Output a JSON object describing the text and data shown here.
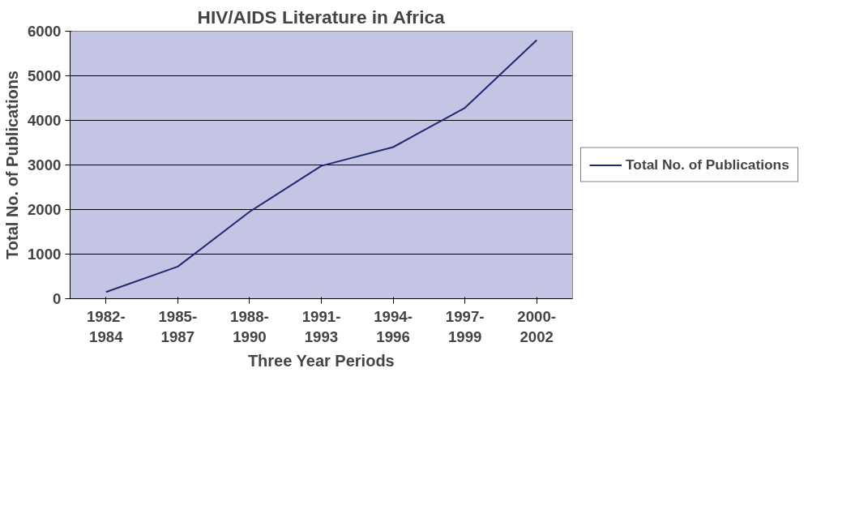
{
  "chart_data": {
    "type": "line",
    "title": "HIV/AIDS Literature in Africa",
    "xlabel": "Three Year Periods",
    "ylabel": "Total No. of Publications",
    "categories": [
      "1982-\n1984",
      "1985-\n1987",
      "1988-\n1990",
      "1991-\n1993",
      "1994-\n1996",
      "1997-\n1999",
      "2000-\n2002"
    ],
    "series": [
      {
        "name": "Total No. of Publications",
        "color": "#1f2a6e",
        "values": [
          150,
          720,
          1950,
          2980,
          3400,
          4280,
          5800
        ]
      }
    ],
    "ylim": [
      0,
      6000
    ],
    "yticks": [
      0,
      1000,
      2000,
      3000,
      4000,
      5000,
      6000
    ],
    "grid": "y",
    "legend": "right",
    "marker": "none",
    "line_style": "solid"
  }
}
